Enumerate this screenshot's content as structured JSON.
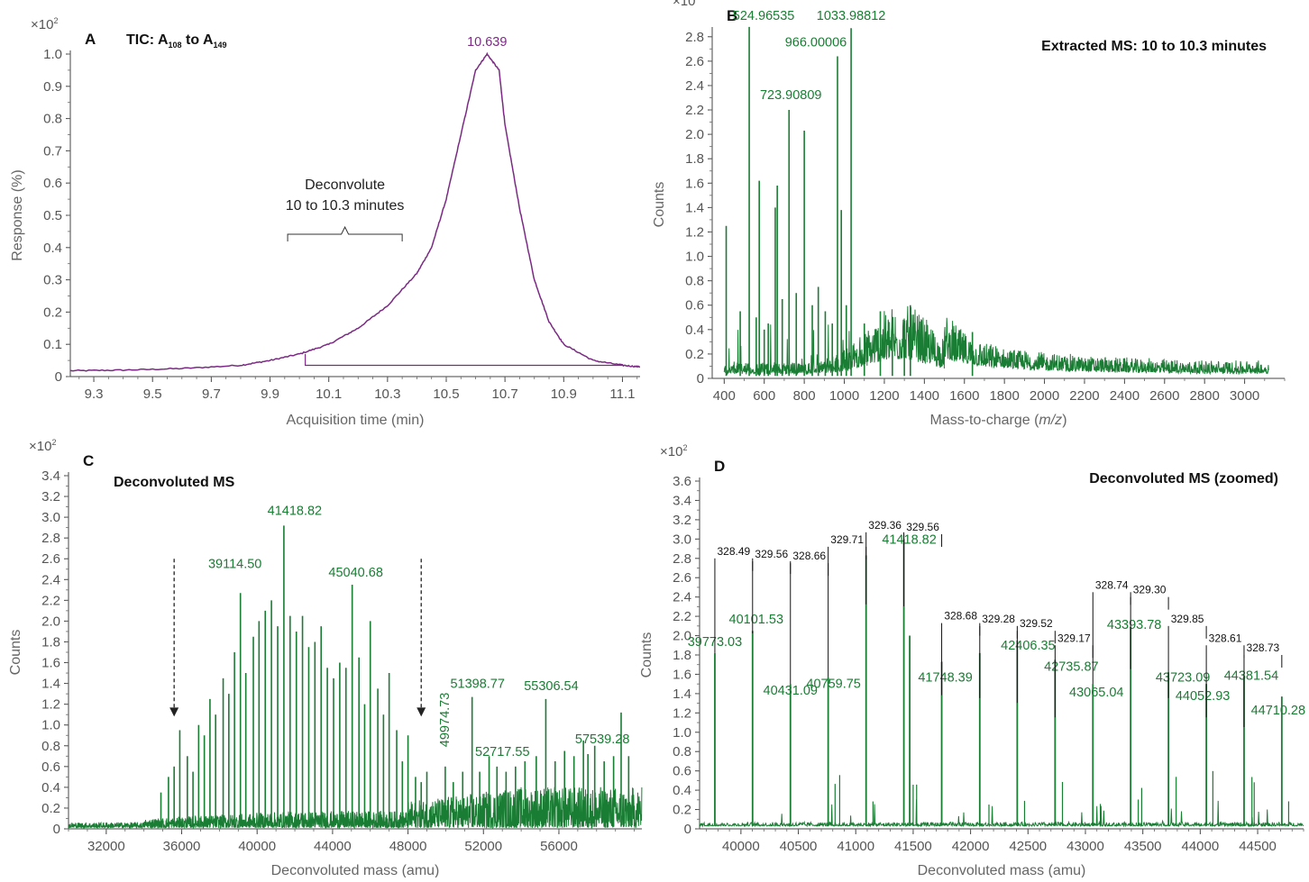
{
  "chart_data": [
    {
      "id": "A",
      "type": "line",
      "panel_letter": "A",
      "title_parts": [
        "TIC: A",
        "108",
        " to A",
        "149"
      ],
      "xlabel": "Acquisition time (min)",
      "ylabel": "Response (%)",
      "y_multiplier": "×10",
      "y_multiplier_exp": "2",
      "xlim": [
        9.22,
        11.16
      ],
      "ylim": [
        0,
        1.0
      ],
      "xticks": [
        "9.3",
        "9.5",
        "9.7",
        "9.9",
        "10.1",
        "10.3",
        "10.5",
        "10.7",
        "10.9",
        "11.1"
      ],
      "yticks": [
        "0",
        "0.1",
        "0.2",
        "0.3",
        "0.4",
        "0.5",
        "0.6",
        "0.7",
        "0.8",
        "0.9",
        "1.0"
      ],
      "series_color": "#7b2a84",
      "x": [
        9.22,
        9.4,
        9.6,
        9.8,
        9.9,
        10.0,
        10.1,
        10.2,
        10.3,
        10.4,
        10.45,
        10.5,
        10.55,
        10.6,
        10.639,
        10.68,
        10.7,
        10.75,
        10.8,
        10.85,
        10.9,
        11.0,
        11.1,
        11.16
      ],
      "y": [
        0.018,
        0.02,
        0.025,
        0.035,
        0.05,
        0.07,
        0.1,
        0.15,
        0.22,
        0.32,
        0.4,
        0.55,
        0.75,
        0.95,
        1.0,
        0.95,
        0.78,
        0.52,
        0.3,
        0.17,
        0.1,
        0.05,
        0.035,
        0.03
      ],
      "peak_label": "10.639",
      "annotation_lines": [
        "Deconvolute",
        "10 to 10.3 minutes"
      ],
      "bracket_range": [
        9.96,
        10.35
      ]
    },
    {
      "id": "B",
      "type": "line",
      "panel_letter": "B",
      "title": "Extracted MS: 10 to 10.3 minutes",
      "xlabel_prefix": "Mass-to-charge (",
      "xlabel_italic": "m/z",
      "xlabel_suffix": ")",
      "ylabel": "Counts",
      "y_multiplier": "×10",
      "y_multiplier_exp": "3",
      "xlim": [
        340,
        3200
      ],
      "ylim": [
        0,
        2.85
      ],
      "xticks": [
        "400",
        "600",
        "800",
        "1000",
        "1200",
        "1400",
        "1600",
        "1800",
        "2000",
        "2200",
        "2400",
        "2600",
        "2800",
        "3000"
      ],
      "yticks": [
        "0",
        "0.2",
        "0.4",
        "0.6",
        "0.8",
        "1.0",
        "1.2",
        "1.4",
        "1.6",
        "1.8",
        "2.0",
        "2.2",
        "2.4",
        "2.6",
        "2.8"
      ],
      "series_color": "#1a7d34",
      "peaks": [
        [
          410,
          1.25
        ],
        [
          480,
          0.55
        ],
        [
          524.97,
          2.88
        ],
        [
          560,
          0.5
        ],
        [
          575,
          1.62
        ],
        [
          600,
          0.4
        ],
        [
          620,
          0.45
        ],
        [
          655,
          1.4
        ],
        [
          665,
          1.58
        ],
        [
          690,
          0.65
        ],
        [
          723.91,
          2.2
        ],
        [
          760,
          0.7
        ],
        [
          800,
          2.03
        ],
        [
          840,
          0.6
        ],
        [
          870,
          0.75
        ],
        [
          905,
          0.55
        ],
        [
          940,
          0.45
        ],
        [
          966.0,
          2.64
        ],
        [
          985,
          1.38
        ],
        [
          1010,
          0.6
        ],
        [
          1033.99,
          2.87
        ],
        [
          1100,
          0.45
        ],
        [
          1180,
          0.55
        ],
        [
          1240,
          0.5
        ],
        [
          1300,
          0.45
        ],
        [
          1330,
          0.6
        ],
        [
          1640,
          0.38
        ]
      ],
      "labels": [
        {
          "text": "524.96535",
          "x": 524.97,
          "y": 2.88
        },
        {
          "text": "723.90809",
          "x": 723.91,
          "y": 2.2
        },
        {
          "text": "966.00006",
          "x": 966.0,
          "y": 2.64
        },
        {
          "text": "1033.98812",
          "x": 1033.99,
          "y": 2.87
        }
      ]
    },
    {
      "id": "C",
      "type": "line",
      "panel_letter": "C",
      "title": "Deconvoluted MS",
      "xlabel": "Deconvoluted mass (amu)",
      "ylabel": "Counts",
      "y_multiplier": "×10",
      "y_multiplier_exp": "2",
      "xlim": [
        30000,
        60400
      ],
      "ylim": [
        0,
        3.4
      ],
      "xticks": [
        "32000",
        "36000",
        "40000",
        "44000",
        "48000",
        "52000",
        "56000"
      ],
      "yticks": [
        "0",
        "0.2",
        "0.4",
        "0.6",
        "0.8",
        "1.0",
        "1.2",
        "1.4",
        "1.6",
        "1.8",
        "2.0",
        "2.2",
        "2.4",
        "2.6",
        "2.8",
        "3.0",
        "3.2",
        "3.4"
      ],
      "series_color": "#1a7d34",
      "peaks": [
        [
          34900,
          0.35
        ],
        [
          35300,
          0.5
        ],
        [
          35600,
          0.6
        ],
        [
          35900,
          0.95
        ],
        [
          36300,
          0.7
        ],
        [
          36600,
          0.55
        ],
        [
          36900,
          1.0
        ],
        [
          37200,
          0.9
        ],
        [
          37500,
          1.25
        ],
        [
          37800,
          1.1
        ],
        [
          38200,
          1.45
        ],
        [
          38500,
          1.3
        ],
        [
          38800,
          1.7
        ],
        [
          39114.5,
          2.27
        ],
        [
          39400,
          1.5
        ],
        [
          39800,
          1.85
        ],
        [
          40101.53,
          2.0
        ],
        [
          40431.09,
          2.1
        ],
        [
          40759.75,
          2.2
        ],
        [
          41090,
          1.95
        ],
        [
          41418.82,
          2.92
        ],
        [
          41748.39,
          2.05
        ],
        [
          42080,
          1.9
        ],
        [
          42406.35,
          2.05
        ],
        [
          42735.87,
          1.75
        ],
        [
          43065.04,
          1.8
        ],
        [
          43393.78,
          1.95
        ],
        [
          43723.09,
          1.55
        ],
        [
          44052.93,
          1.45
        ],
        [
          44381.54,
          1.6
        ],
        [
          44710.28,
          1.55
        ],
        [
          45040.68,
          2.35
        ],
        [
          45400,
          1.65
        ],
        [
          45700,
          1.2
        ],
        [
          46000,
          2.0
        ],
        [
          46400,
          1.35
        ],
        [
          46700,
          1.1
        ],
        [
          47000,
          1.5
        ],
        [
          47400,
          0.95
        ],
        [
          47700,
          0.65
        ],
        [
          48000,
          0.9
        ],
        [
          48400,
          0.5
        ],
        [
          48700,
          0.45
        ],
        [
          49000,
          0.55
        ],
        [
          49974.73,
          0.6
        ],
        [
          50400,
          0.45
        ],
        [
          50900,
          0.55
        ],
        [
          51398.77,
          1.27
        ],
        [
          51800,
          0.55
        ],
        [
          52300,
          0.7
        ],
        [
          52717.55,
          0.6
        ],
        [
          53200,
          0.55
        ],
        [
          53700,
          0.6
        ],
        [
          54200,
          0.65
        ],
        [
          54800,
          0.7
        ],
        [
          55306.54,
          1.25
        ],
        [
          55800,
          0.65
        ],
        [
          56300,
          0.75
        ],
        [
          56800,
          0.7
        ],
        [
          57300,
          0.85
        ],
        [
          57539.28,
          0.72
        ],
        [
          57900,
          0.8
        ],
        [
          58400,
          0.65
        ],
        [
          58900,
          0.7
        ],
        [
          59300,
          1.12
        ],
        [
          59700,
          0.7
        ]
      ],
      "labels": [
        {
          "text": "39114.50",
          "x": 39114.5,
          "y": 2.27
        },
        {
          "text": "41418.82",
          "x": 41418.82,
          "y": 2.92
        },
        {
          "text": "45040.68",
          "x": 45040.68,
          "y": 2.35
        },
        {
          "text": "49974.73",
          "x": 49974.73,
          "y": 0.6
        },
        {
          "text": "51398.77",
          "x": 51398.77,
          "y": 1.27
        },
        {
          "text": "52717.55",
          "x": 52717.55,
          "y": 0.6
        },
        {
          "text": "55306.54",
          "x": 55306.54,
          "y": 1.25
        },
        {
          "text": "57539.28",
          "x": 57539.28,
          "y": 0.72
        }
      ],
      "arrows_x": [
        35600,
        48700
      ]
    },
    {
      "id": "D",
      "type": "line",
      "panel_letter": "D",
      "title": "Deconvoluted MS (zoomed)",
      "xlabel": "Deconvoluted mass (amu)",
      "ylabel": "Counts",
      "y_multiplier": "×10",
      "y_multiplier_exp": "2",
      "xlim": [
        39640,
        44900
      ],
      "ylim": [
        0,
        3.6
      ],
      "xticks": [
        "40000",
        "40500",
        "41000",
        "41500",
        "42000",
        "42500",
        "43000",
        "43500",
        "44000",
        "44500"
      ],
      "yticks": [
        "0",
        "0.2",
        "0.4",
        "0.6",
        "0.8",
        "1.0",
        "1.2",
        "1.4",
        "1.6",
        "1.8",
        "2.0",
        "2.2",
        "2.4",
        "2.6",
        "2.8",
        "3.0",
        "3.2",
        "3.4",
        "3.6"
      ],
      "series_color": "#1a7d34",
      "peaks": [
        [
          39773.03,
          1.82
        ],
        [
          40101.53,
          2.05
        ],
        [
          40431.09,
          1.5
        ],
        [
          40759.75,
          1.57
        ],
        [
          41090,
          2.83
        ],
        [
          41418.82,
          3.0
        ],
        [
          41470,
          2.0
        ],
        [
          41748.39,
          1.73
        ],
        [
          42080,
          1.82
        ],
        [
          42406.35,
          1.95
        ],
        [
          42735.87,
          1.75
        ],
        [
          43065.04,
          1.5
        ],
        [
          43393.78,
          2.09
        ],
        [
          43723.09,
          1.62
        ],
        [
          44052.93,
          1.5
        ],
        [
          44381.54,
          1.58
        ],
        [
          44710.28,
          1.37
        ]
      ],
      "labels": [
        {
          "text": "39773.03",
          "x": 39773.03,
          "y": 1.82
        },
        {
          "text": "40101.53",
          "x": 40101.53,
          "y": 2.05
        },
        {
          "text": "40431.09",
          "x": 40431.09,
          "y": 1.5
        },
        {
          "text": "40759.75",
          "x": 40759.75,
          "y": 1.57
        },
        {
          "text": "41418.82",
          "x": 41418.82,
          "y": 3.0
        },
        {
          "text": "41748.39",
          "x": 41748.39,
          "y": 1.73
        },
        {
          "text": "42406.35",
          "x": 42406.35,
          "y": 1.95
        },
        {
          "text": "42735.87",
          "x": 42735.87,
          "y": 1.75
        },
        {
          "text": "43065.04",
          "x": 43065.04,
          "y": 1.5
        },
        {
          "text": "43393.78",
          "x": 43393.78,
          "y": 2.09
        },
        {
          "text": "43723.09",
          "x": 43723.09,
          "y": 1.62
        },
        {
          "text": "44052.93",
          "x": 44052.93,
          "y": 1.5
        },
        {
          "text": "44381.54",
          "x": 44381.54,
          "y": 1.58
        },
        {
          "text": "44710.28",
          "x": 44710.28,
          "y": 1.37
        }
      ],
      "spacings": [
        {
          "text": "328.49",
          "x1": 39773.03,
          "x2": 40101.53,
          "y": 2.8
        },
        {
          "text": "329.56",
          "x1": 40101.53,
          "x2": 40431.09,
          "y": 2.77
        },
        {
          "text": "328.66",
          "x1": 40431.09,
          "x2": 40759.75,
          "y": 2.75
        },
        {
          "text": "329.71",
          "x1": 40759.75,
          "x2": 41090,
          "y": 2.92
        },
        {
          "text": "329.36",
          "x1": 41090,
          "x2": 41418.82,
          "y": 3.07
        },
        {
          "text": "329.56",
          "x1": 41418.82,
          "x2": 41748.39,
          "y": 3.05
        },
        {
          "text": "328.68",
          "x1": 41748.39,
          "x2": 42080,
          "y": 2.13
        },
        {
          "text": "329.28",
          "x1": 42080,
          "x2": 42406.35,
          "y": 2.1
        },
        {
          "text": "329.52",
          "x1": 42406.35,
          "x2": 42735.87,
          "y": 2.05
        },
        {
          "text": "329.17",
          "x1": 42735.87,
          "x2": 43065.04,
          "y": 1.9
        },
        {
          "text": "328.74",
          "x1": 43065.04,
          "x2": 43393.78,
          "y": 2.45
        },
        {
          "text": "329.30",
          "x1": 43393.78,
          "x2": 43723.09,
          "y": 2.4
        },
        {
          "text": "329.85",
          "x1": 43723.09,
          "x2": 44052.93,
          "y": 2.1
        },
        {
          "text": "328.61",
          "x1": 44052.93,
          "x2": 44381.54,
          "y": 1.9
        },
        {
          "text": "328.73",
          "x1": 44381.54,
          "x2": 44710.28,
          "y": 1.8
        }
      ]
    }
  ]
}
